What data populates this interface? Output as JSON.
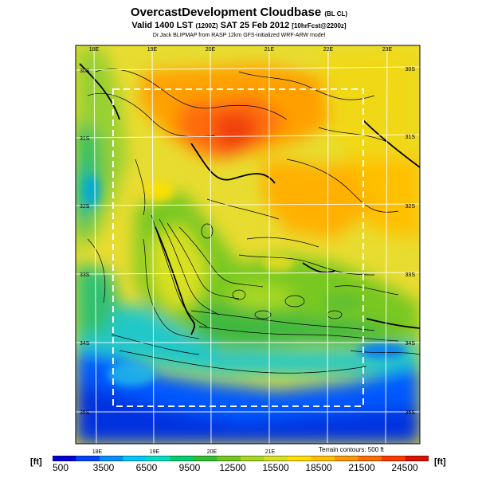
{
  "header": {
    "title": "OvercastDevelopment Cloudbase",
    "title_tag": "(BL CL)",
    "valid_prefix": "Valid 1400 LST",
    "valid_utc": "(1200Z)",
    "valid_date": "SAT 25 Feb 2012",
    "valid_forecast": "[10hrFcst@2200z]",
    "credit": "Dr.Jack BLIPMAP from RASP 12km GFS-initialized WRF-ARW model"
  },
  "map": {
    "lon_labels_top": [
      "18E",
      "19E",
      "20E",
      "21E",
      "22E",
      "23E"
    ],
    "lon_labels_bottom": [
      "18E",
      "19E",
      "20E",
      "21E"
    ],
    "lat_labels_left": [
      "30S",
      "31S",
      "32S",
      "33S",
      "34S",
      "35S"
    ],
    "lat_labels_right": [
      "30S",
      "31S",
      "32S",
      "33S",
      "34S",
      "35S"
    ],
    "terrain_note": "Terrain contours: 500 ft"
  },
  "colorbar": {
    "unit_left": "[ft]",
    "unit_right": "[ft]",
    "ticks": [
      "500",
      "3500",
      "6500",
      "9500",
      "12500",
      "15500",
      "18500",
      "21500",
      "24500"
    ],
    "colors": [
      "#0000dd",
      "#0044ff",
      "#0090ff",
      "#00c8ff",
      "#00e0c0",
      "#00d070",
      "#30c030",
      "#70c820",
      "#a8d820",
      "#d8e020",
      "#ffe000",
      "#ffc000",
      "#ff9800",
      "#ff6c00",
      "#ff3800",
      "#e01000"
    ]
  }
}
